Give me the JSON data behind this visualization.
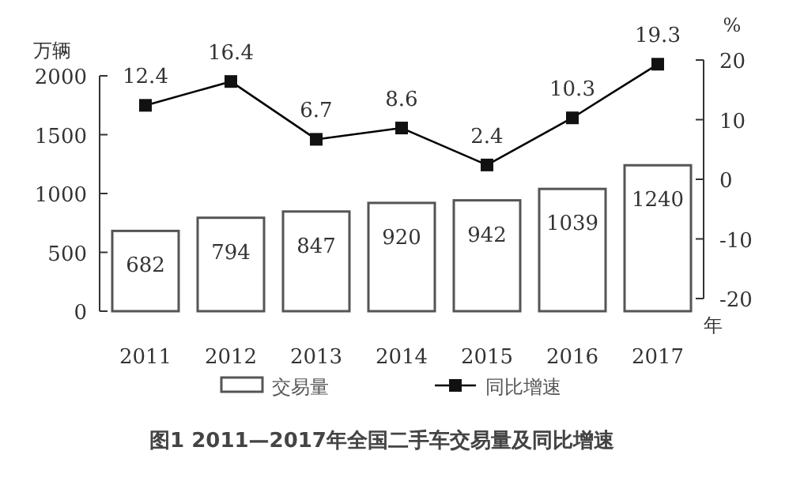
{
  "chart_data": {
    "type": "bar",
    "title": "图1  2011—2017年全国二手车交易量及同比增速",
    "xlabel": "年",
    "ylabel": "万辆",
    "y2label": "%",
    "categories": [
      "2011",
      "2012",
      "2013",
      "2014",
      "2015",
      "2016",
      "2017"
    ],
    "series": [
      {
        "name": "交易量",
        "color": "#ffffff",
        "values": [
          682,
          794,
          847,
          920,
          942,
          1039,
          1240
        ]
      },
      {
        "name": "同比增速",
        "type": "line",
        "axis": "y2",
        "color": "#000000",
        "marker": "square",
        "values": [
          12.4,
          16.4,
          6.7,
          8.6,
          2.4,
          10.3,
          19.3
        ]
      }
    ],
    "ylim": [
      0,
      2000
    ],
    "yticks": [
      0,
      500,
      1000,
      1500,
      2000
    ],
    "y2lim": [
      -20,
      20
    ],
    "y2ticks": [
      -20,
      -10,
      0,
      10,
      20
    ],
    "data_labels": true,
    "legend": "bottom"
  }
}
